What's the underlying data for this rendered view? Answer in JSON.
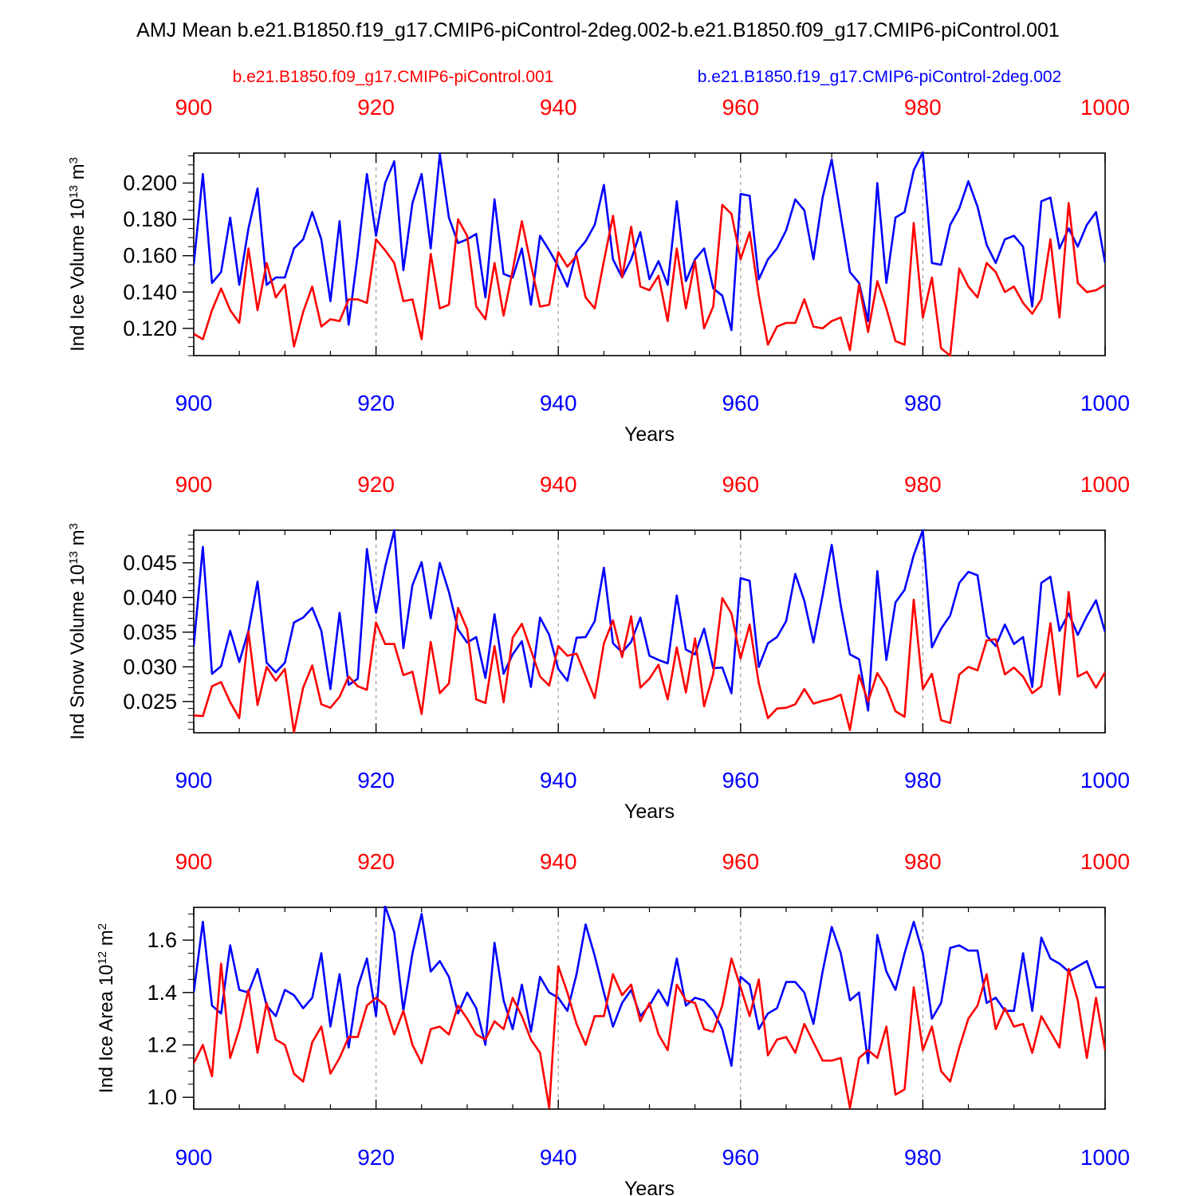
{
  "title": "AMJ Mean b.e21.B1850.f19_g17.CMIP6-piControl-2deg.002-b.e21.B1850.f09_g17.CMIP6-piControl.001",
  "legend": {
    "red_label": "b.e21.B1850.f09_g17.CMIP6-piControl.001",
    "blue_label": "b.e21.B1850.f19_g17.CMIP6-piControl-2deg.002"
  },
  "colors": {
    "red": "#ff0000",
    "blue": "#0000ff",
    "axis": "#000000",
    "grid": "#999999"
  },
  "chart_data": [
    {
      "type": "line",
      "title": "",
      "ylabel_parts": {
        "main": "Ind Ice Volume 10",
        "sup": "13",
        "unit": " m",
        "unit_sup": "3"
      },
      "xlabel": "Years",
      "xlim": [
        900,
        1000
      ],
      "ylim": [
        0.105,
        0.2165
      ],
      "xticks": [
        900,
        920,
        940,
        960,
        980,
        1000
      ],
      "yticks": [
        0.12,
        0.14,
        0.16,
        0.18,
        0.2
      ],
      "ytick_labels": [
        "0.120",
        "0.140",
        "0.160",
        "0.180",
        "0.200"
      ],
      "yminor_step": 0.005,
      "start_year": 900,
      "series": [
        {
          "name": "b.e21.B1850.f19_g17.CMIP6-piControl-2deg.002",
          "color": "blue",
          "values": [
            0.155,
            0.205,
            0.145,
            0.151,
            0.181,
            0.144,
            0.175,
            0.197,
            0.144,
            0.148,
            0.148,
            0.164,
            0.169,
            0.184,
            0.169,
            0.135,
            0.179,
            0.122,
            0.161,
            0.205,
            0.171,
            0.2,
            0.212,
            0.152,
            0.189,
            0.205,
            0.164,
            0.216,
            0.181,
            0.167,
            0.169,
            0.172,
            0.137,
            0.191,
            0.15,
            0.148,
            0.164,
            0.133,
            0.171,
            0.163,
            0.154,
            0.143,
            0.162,
            0.168,
            0.177,
            0.199,
            0.158,
            0.148,
            0.158,
            0.173,
            0.147,
            0.157,
            0.144,
            0.19,
            0.146,
            0.158,
            0.164,
            0.142,
            0.138,
            0.119,
            0.194,
            0.193,
            0.147,
            0.158,
            0.164,
            0.174,
            0.191,
            0.185,
            0.158,
            0.192,
            0.213,
            0.182,
            0.151,
            0.145,
            0.124,
            0.2,
            0.145,
            0.181,
            0.184,
            0.207,
            0.217,
            0.156,
            0.155,
            0.177,
            0.186,
            0.201,
            0.187,
            0.166,
            0.156,
            0.169,
            0.171,
            0.165,
            0.132,
            0.19,
            0.192,
            0.164,
            0.175,
            0.165,
            0.177,
            0.184,
            0.156
          ]
        },
        {
          "name": "b.e21.B1850.f09_g17.CMIP6-piControl.001",
          "color": "red",
          "values": [
            0.117,
            0.114,
            0.13,
            0.142,
            0.13,
            0.123,
            0.164,
            0.13,
            0.156,
            0.137,
            0.144,
            0.11,
            0.129,
            0.143,
            0.121,
            0.125,
            0.124,
            0.136,
            0.136,
            0.134,
            0.169,
            0.163,
            0.156,
            0.135,
            0.136,
            0.114,
            0.161,
            0.131,
            0.133,
            0.18,
            0.171,
            0.132,
            0.125,
            0.156,
            0.127,
            0.152,
            0.179,
            0.155,
            0.132,
            0.133,
            0.162,
            0.154,
            0.16,
            0.137,
            0.131,
            0.157,
            0.182,
            0.148,
            0.176,
            0.143,
            0.141,
            0.149,
            0.124,
            0.164,
            0.131,
            0.157,
            0.12,
            0.132,
            0.188,
            0.183,
            0.158,
            0.173,
            0.138,
            0.111,
            0.121,
            0.123,
            0.123,
            0.136,
            0.121,
            0.12,
            0.124,
            0.126,
            0.108,
            0.144,
            0.118,
            0.146,
            0.131,
            0.113,
            0.111,
            0.178,
            0.126,
            0.148,
            0.109,
            0.105,
            0.153,
            0.143,
            0.137,
            0.156,
            0.151,
            0.14,
            0.143,
            0.134,
            0.128,
            0.136,
            0.169,
            0.126,
            0.189,
            0.145,
            0.14,
            0.141,
            0.144
          ]
        }
      ]
    },
    {
      "type": "line",
      "title": "",
      "ylabel_parts": {
        "main": "Ind Snow Volume 10",
        "sup": "13",
        "unit": " m",
        "unit_sup": "3"
      },
      "xlabel": "Years",
      "xlim": [
        900,
        1000
      ],
      "ylim": [
        0.0205,
        0.0497
      ],
      "xticks": [
        900,
        920,
        940,
        960,
        980,
        1000
      ],
      "yticks": [
        0.025,
        0.03,
        0.035,
        0.04,
        0.045
      ],
      "ytick_labels": [
        "0.025",
        "0.030",
        "0.035",
        "0.040",
        "0.045"
      ],
      "yminor_step": 0.001,
      "start_year": 900,
      "series": [
        {
          "name": "b.e21.B1850.f19_g17.CMIP6-piControl-2deg.002",
          "color": "blue",
          "values": [
            0.033,
            0.0473,
            0.029,
            0.0301,
            0.0352,
            0.0307,
            0.0352,
            0.0423,
            0.0306,
            0.0292,
            0.0306,
            0.0364,
            0.0371,
            0.0385,
            0.0352,
            0.0268,
            0.0378,
            0.0274,
            0.0283,
            0.047,
            0.0378,
            0.0444,
            0.0497,
            0.0327,
            0.0418,
            0.0451,
            0.037,
            0.045,
            0.0408,
            0.0354,
            0.0335,
            0.0343,
            0.0284,
            0.0376,
            0.029,
            0.0318,
            0.0337,
            0.0271,
            0.0371,
            0.0346,
            0.0297,
            0.028,
            0.0342,
            0.0343,
            0.0366,
            0.0443,
            0.0334,
            0.0321,
            0.0336,
            0.0371,
            0.0316,
            0.031,
            0.0305,
            0.0403,
            0.0325,
            0.0318,
            0.0355,
            0.0298,
            0.0299,
            0.0262,
            0.0428,
            0.0424,
            0.03,
            0.0334,
            0.0343,
            0.0366,
            0.0434,
            0.0395,
            0.0335,
            0.0403,
            0.0476,
            0.0388,
            0.0318,
            0.0311,
            0.0237,
            0.0438,
            0.031,
            0.0393,
            0.0411,
            0.0461,
            0.0497,
            0.0328,
            0.0355,
            0.0374,
            0.0421,
            0.0437,
            0.0432,
            0.0345,
            0.033,
            0.0361,
            0.0333,
            0.0343,
            0.0271,
            0.0421,
            0.043,
            0.0352,
            0.0377,
            0.0346,
            0.0373,
            0.0396,
            0.035
          ]
        },
        {
          "name": "b.e21.B1850.f09_g17.CMIP6-piControl.001",
          "color": "red",
          "values": [
            0.023,
            0.0229,
            0.0272,
            0.0278,
            0.0249,
            0.0226,
            0.0351,
            0.0245,
            0.03,
            0.028,
            0.0297,
            0.0206,
            0.027,
            0.0302,
            0.0246,
            0.0241,
            0.0257,
            0.0286,
            0.0272,
            0.0267,
            0.0364,
            0.0333,
            0.0333,
            0.0288,
            0.0293,
            0.0232,
            0.0336,
            0.0262,
            0.0276,
            0.0385,
            0.0354,
            0.0253,
            0.0248,
            0.033,
            0.0249,
            0.0342,
            0.0362,
            0.0324,
            0.0286,
            0.0273,
            0.033,
            0.0316,
            0.0319,
            0.0287,
            0.0255,
            0.0334,
            0.0367,
            0.0314,
            0.0373,
            0.027,
            0.0283,
            0.0303,
            0.0253,
            0.0328,
            0.0263,
            0.0341,
            0.0243,
            0.029,
            0.0399,
            0.0377,
            0.0312,
            0.0361,
            0.0276,
            0.0226,
            0.024,
            0.0241,
            0.0246,
            0.0268,
            0.0247,
            0.0251,
            0.0254,
            0.026,
            0.0209,
            0.0288,
            0.025,
            0.0291,
            0.027,
            0.0236,
            0.0228,
            0.0397,
            0.0268,
            0.029,
            0.0223,
            0.0219,
            0.0289,
            0.03,
            0.0295,
            0.0338,
            0.034,
            0.0289,
            0.0299,
            0.0286,
            0.0262,
            0.0272,
            0.0363,
            0.026,
            0.0408,
            0.0286,
            0.0293,
            0.027,
            0.0292
          ]
        }
      ]
    },
    {
      "type": "line",
      "title": "",
      "ylabel_parts": {
        "main": "Ind Ice Area 10",
        "sup": "12",
        "unit": " m",
        "unit_sup": "2"
      },
      "xlabel": "Years",
      "xlim": [
        900,
        1000
      ],
      "ylim": [
        0.955,
        1.725
      ],
      "xticks": [
        900,
        920,
        940,
        960,
        980,
        1000
      ],
      "yticks": [
        1.0,
        1.2,
        1.4,
        1.6
      ],
      "ytick_labels": [
        "1.0",
        "1.2",
        "1.4",
        "1.6"
      ],
      "yminor_step": 0.05,
      "start_year": 900,
      "series": [
        {
          "name": "b.e21.B1850.f19_g17.CMIP6-piControl-2deg.002",
          "color": "blue",
          "values": [
            1.4,
            1.67,
            1.35,
            1.32,
            1.58,
            1.41,
            1.4,
            1.49,
            1.35,
            1.31,
            1.41,
            1.39,
            1.34,
            1.38,
            1.55,
            1.27,
            1.47,
            1.19,
            1.42,
            1.53,
            1.31,
            1.73,
            1.63,
            1.33,
            1.55,
            1.7,
            1.48,
            1.52,
            1.46,
            1.32,
            1.4,
            1.34,
            1.2,
            1.59,
            1.37,
            1.26,
            1.43,
            1.25,
            1.46,
            1.4,
            1.38,
            1.33,
            1.47,
            1.66,
            1.54,
            1.4,
            1.27,
            1.36,
            1.41,
            1.31,
            1.35,
            1.41,
            1.35,
            1.53,
            1.35,
            1.38,
            1.37,
            1.33,
            1.26,
            1.12,
            1.46,
            1.43,
            1.26,
            1.32,
            1.34,
            1.44,
            1.44,
            1.4,
            1.28,
            1.48,
            1.65,
            1.55,
            1.37,
            1.4,
            1.13,
            1.62,
            1.48,
            1.41,
            1.55,
            1.67,
            1.55,
            1.3,
            1.36,
            1.57,
            1.58,
            1.56,
            1.56,
            1.36,
            1.38,
            1.33,
            1.33,
            1.55,
            1.33,
            1.61,
            1.53,
            1.51,
            1.48,
            1.5,
            1.52,
            1.42,
            1.42
          ]
        },
        {
          "name": "b.e21.B1850.f09_g17.CMIP6-piControl.001",
          "color": "red",
          "values": [
            1.13,
            1.2,
            1.08,
            1.51,
            1.15,
            1.26,
            1.41,
            1.17,
            1.36,
            1.22,
            1.2,
            1.09,
            1.06,
            1.21,
            1.27,
            1.09,
            1.15,
            1.23,
            1.23,
            1.35,
            1.38,
            1.35,
            1.24,
            1.33,
            1.2,
            1.13,
            1.26,
            1.27,
            1.24,
            1.35,
            1.3,
            1.24,
            1.22,
            1.29,
            1.26,
            1.38,
            1.31,
            1.22,
            1.17,
            0.96,
            1.5,
            1.4,
            1.28,
            1.2,
            1.31,
            1.31,
            1.47,
            1.39,
            1.43,
            1.29,
            1.36,
            1.24,
            1.18,
            1.43,
            1.37,
            1.36,
            1.26,
            1.25,
            1.35,
            1.53,
            1.42,
            1.31,
            1.45,
            1.16,
            1.22,
            1.23,
            1.17,
            1.28,
            1.21,
            1.14,
            1.14,
            1.15,
            0.96,
            1.15,
            1.18,
            1.15,
            1.27,
            1.01,
            1.03,
            1.42,
            1.18,
            1.27,
            1.1,
            1.06,
            1.19,
            1.3,
            1.35,
            1.47,
            1.26,
            1.34,
            1.27,
            1.28,
            1.17,
            1.31,
            1.25,
            1.19,
            1.49,
            1.37,
            1.15,
            1.38,
            1.18
          ]
        }
      ]
    }
  ]
}
